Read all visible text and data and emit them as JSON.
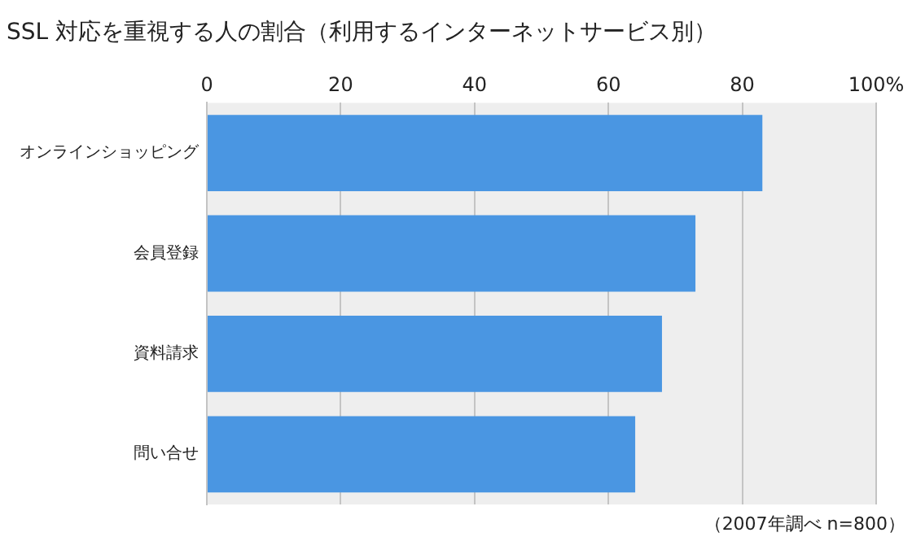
{
  "chart_data": {
    "type": "bar",
    "orientation": "horizontal",
    "title": "SSL 対応を重視する人の割合（利用するインターネットサービス別）",
    "categories": [
      "オンラインショッピング",
      "会員登録",
      "資料請求",
      "問い合せ"
    ],
    "values": [
      83,
      73,
      68,
      64
    ],
    "color": "#4a96e2",
    "xlim": [
      0,
      100
    ],
    "xticks": [
      0,
      20,
      40,
      60,
      80,
      {
        "value": 100,
        "label": "100%"
      }
    ],
    "grid": "x",
    "legend": false,
    "annotations": [
      "（2007年調べ n=800）"
    ]
  }
}
